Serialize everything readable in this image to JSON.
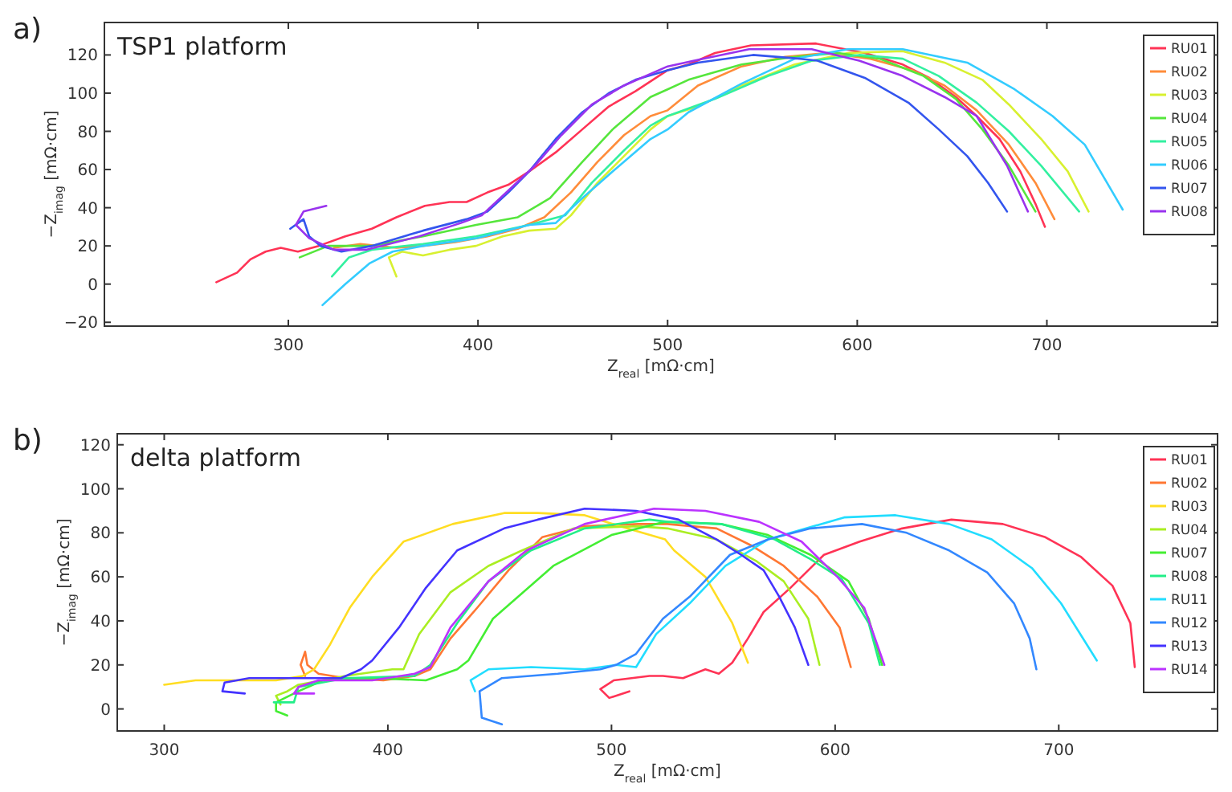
{
  "chart_data": [
    {
      "type": "line",
      "title": "TSP1 platform",
      "xlabel": "Z$_{real}$ [mΩ·cm]",
      "ylabel": "−Z$_{imag}$ [mΩ·cm]",
      "annotations": [
        "a)"
      ],
      "xlim": [
        203,
        790
      ],
      "ylim": [
        -22,
        137
      ],
      "xticks": [
        300,
        400,
        500,
        600,
        700
      ],
      "yticks": [
        -20,
        0,
        20,
        40,
        60,
        80,
        100,
        120
      ],
      "grid": false,
      "legend": "top right",
      "line_style": "solid",
      "marker": "none",
      "series": [
        {
          "name": "RU01",
          "color": "#ff3355",
          "x": [
            262,
            273,
            280,
            288,
            296,
            305,
            316,
            330,
            344,
            357,
            372,
            385,
            394,
            405,
            416,
            427,
            441,
            455,
            469,
            483,
            500,
            511,
            525,
            544,
            578,
            604,
            624,
            638,
            652,
            663,
            675,
            686,
            694,
            699
          ],
          "values": [
            1,
            6,
            13,
            17,
            19,
            17,
            20,
            25,
            29,
            35,
            41,
            43,
            43,
            48,
            52,
            59,
            69,
            81,
            93,
            101,
            112,
            115,
            121,
            125,
            126,
            121,
            115,
            108,
            98,
            88,
            76,
            59,
            42,
            30
          ]
        },
        {
          "name": "RU02",
          "color": "#ff8c3a",
          "x": [
            324,
            338,
            357,
            371,
            388,
            405,
            421,
            435,
            449,
            463,
            477,
            491,
            500,
            516,
            539,
            562,
            584,
            607,
            629,
            646,
            663,
            680,
            694,
            704
          ],
          "values": [
            19,
            21,
            19,
            20,
            22,
            25,
            29,
            35,
            48,
            64,
            78,
            88,
            91,
            104,
            114,
            119,
            121,
            118,
            112,
            104,
            91,
            73,
            53,
            34
          ]
        },
        {
          "name": "RU03",
          "color": "#d8f030",
          "x": [
            357,
            353,
            360,
            371,
            385,
            399,
            413,
            427,
            441,
            449,
            463,
            477,
            491,
            500,
            516,
            539,
            567,
            595,
            624,
            646,
            666,
            680,
            697,
            711,
            722
          ],
          "values": [
            4,
            14,
            17,
            15,
            18,
            20,
            25,
            28,
            29,
            36,
            53,
            67,
            81,
            88,
            93,
            104,
            115,
            121,
            122,
            116,
            107,
            94,
            76,
            59,
            38
          ]
        },
        {
          "name": "RU04",
          "color": "#55e63c",
          "x": [
            306,
            321,
            344,
            371,
            399,
            421,
            438,
            455,
            471,
            491,
            500,
            511,
            539,
            567,
            590,
            612,
            635,
            652,
            666,
            680,
            694
          ],
          "values": [
            14,
            20,
            20,
            25,
            31,
            35,
            45,
            64,
            81,
            98,
            102,
            107,
            115,
            119,
            121,
            118,
            109,
            97,
            81,
            62,
            38
          ]
        },
        {
          "name": "RU05",
          "color": "#33f0a0",
          "x": [
            323,
            332,
            344,
            371,
            399,
            427,
            446,
            460,
            477,
            491,
            500,
            525,
            553,
            576,
            601,
            624,
            643,
            663,
            680,
            697,
            717
          ],
          "values": [
            4,
            14,
            18,
            21,
            25,
            31,
            36,
            53,
            70,
            83,
            88,
            97,
            109,
            117,
            120,
            118,
            109,
            95,
            80,
            62,
            38
          ]
        },
        {
          "name": "RU06",
          "color": "#33ccff",
          "x": [
            318,
            330,
            343,
            355,
            371,
            399,
            427,
            441,
            455,
            471,
            491,
            500,
            511,
            539,
            567,
            595,
            624,
            658,
            683,
            703,
            720,
            740
          ],
          "values": [
            -11,
            0,
            11,
            17,
            20,
            24,
            31,
            32,
            45,
            59,
            76,
            81,
            90,
            105,
            118,
            123,
            123,
            116,
            102,
            88,
            73,
            39
          ]
        },
        {
          "name": "RU07",
          "color": "#3355ee",
          "x": [
            301,
            308,
            311,
            317,
            328,
            344,
            371,
            394,
            405,
            416,
            427,
            441,
            455,
            469,
            483,
            500,
            516,
            545,
            570,
            579,
            604,
            627,
            643,
            658,
            669,
            679
          ],
          "values": [
            29,
            34,
            25,
            20,
            17,
            20,
            28,
            34,
            38,
            48,
            59,
            76,
            90,
            100,
            107,
            112,
            116,
            120,
            118,
            117,
            108,
            95,
            81,
            67,
            53,
            38
          ]
        },
        {
          "name": "RU08",
          "color": "#9933ee",
          "x": [
            320,
            308,
            304,
            311,
            324,
            341,
            369,
            391,
            402,
            416,
            430,
            444,
            460,
            477,
            500,
            514,
            543,
            576,
            601,
            624,
            646,
            663,
            679,
            690
          ],
          "values": [
            41,
            38,
            31,
            24,
            18,
            18,
            25,
            32,
            36,
            49,
            62,
            78,
            94,
            104,
            114,
            117,
            123,
            123,
            117,
            109,
            98,
            88,
            62,
            38
          ]
        }
      ]
    },
    {
      "type": "line",
      "title": "delta platform",
      "xlabel": "Z$_{real}$ [mΩ·cm]",
      "ylabel": "−Z$_{imag}$ [mΩ·cm]",
      "annotations": [
        "b)"
      ],
      "xlim": [
        279,
        771
      ],
      "ylim": [
        -10,
        125
      ],
      "xticks": [
        300,
        400,
        500,
        600,
        700
      ],
      "yticks": [
        0,
        20,
        40,
        60,
        80,
        100,
        120
      ],
      "grid": false,
      "legend": "top right",
      "line_style": "solid",
      "marker": "none",
      "series": [
        {
          "name": "RU01",
          "color": "#ff3355",
          "x": [
            508,
            499,
            495,
            501,
            517,
            523,
            532,
            542,
            548,
            554,
            561,
            568,
            580,
            595,
            611,
            630,
            652,
            675,
            694,
            710,
            724,
            732,
            734
          ],
          "values": [
            8,
            5,
            9,
            13,
            15,
            15,
            14,
            18,
            16,
            21,
            32,
            44,
            55,
            70,
            76,
            82,
            86,
            84,
            78,
            69,
            56,
            39,
            19
          ]
        },
        {
          "name": "RU02",
          "color": "#ff7733",
          "x": [
            363,
            361,
            363,
            364,
            369,
            381,
            398,
            412,
            419,
            428,
            440,
            454,
            469,
            488,
            512,
            525,
            547,
            563,
            577,
            592,
            602,
            607
          ],
          "values": [
            15,
            20,
            26,
            20,
            16,
            14,
            13,
            15,
            18,
            32,
            46,
            63,
            78,
            83,
            84,
            84,
            82,
            74,
            65,
            51,
            37,
            19
          ]
        },
        {
          "name": "RU03",
          "color": "#ffdd22",
          "x": [
            300,
            314,
            336,
            350,
            362,
            367,
            374,
            383,
            393,
            407,
            429,
            452,
            467,
            488,
            507,
            524,
            528,
            542,
            554,
            561
          ],
          "values": [
            11,
            13,
            13,
            13,
            15,
            18,
            29,
            46,
            60,
            76,
            84,
            89,
            89,
            88,
            82,
            77,
            72,
            60,
            39,
            21
          ]
        },
        {
          "name": "RU04",
          "color": "#aaee22",
          "x": [
            352,
            350,
            355,
            360,
            381,
            402,
            407,
            414,
            428,
            445,
            460,
            483,
            512,
            525,
            547,
            565,
            577,
            588,
            593
          ],
          "values": [
            2,
            6,
            8,
            11,
            15,
            18,
            18,
            34,
            53,
            65,
            72,
            82,
            83,
            82,
            77,
            67,
            58,
            41,
            20
          ]
        },
        {
          "name": "RU07",
          "color": "#44ee33",
          "x": [
            355,
            350,
            350,
            360,
            371,
            393,
            417,
            431,
            436,
            447,
            474,
            500,
            524,
            549,
            570,
            589,
            606,
            615,
            621
          ],
          "values": [
            -3,
            -1,
            3,
            8,
            13,
            14,
            13,
            18,
            22,
            41,
            65,
            79,
            85,
            84,
            79,
            70,
            58,
            41,
            20
          ]
        },
        {
          "name": "RU08",
          "color": "#22ee88",
          "x": [
            349,
            358,
            360,
            381,
            412,
            419,
            431,
            445,
            464,
            488,
            517,
            525,
            549,
            573,
            589,
            603,
            615,
            620
          ],
          "values": [
            3,
            3,
            10,
            14,
            15,
            20,
            39,
            58,
            72,
            82,
            86,
            85,
            84,
            77,
            68,
            59,
            39,
            20
          ]
        },
        {
          "name": "RU11",
          "color": "#22ddff",
          "x": [
            439,
            437,
            445,
            464,
            488,
            502,
            511,
            520,
            535,
            551,
            570,
            604,
            627,
            651,
            670,
            688,
            701,
            717
          ],
          "values": [
            8,
            13,
            18,
            19,
            18,
            20,
            19,
            34,
            48,
            65,
            77,
            87,
            88,
            84,
            77,
            64,
            48,
            22
          ]
        },
        {
          "name": "RU12",
          "color": "#3388ff",
          "x": [
            451,
            442,
            441,
            451,
            476,
            495,
            502,
            511,
            523,
            535,
            553,
            570,
            589,
            612,
            632,
            651,
            668,
            680,
            687,
            690
          ],
          "values": [
            -7,
            -4,
            8,
            14,
            16,
            18,
            20,
            25,
            41,
            51,
            70,
            77,
            82,
            84,
            80,
            72,
            62,
            48,
            32,
            18
          ]
        },
        {
          "name": "RU13",
          "color": "#4433ff",
          "x": [
            336,
            326,
            327,
            338,
            357,
            379,
            388,
            393,
            405,
            417,
            431,
            452,
            467,
            488,
            511,
            530,
            547,
            558,
            568,
            575,
            582,
            588
          ],
          "values": [
            7,
            8,
            12,
            14,
            14,
            14,
            18,
            22,
            37,
            55,
            72,
            82,
            86,
            91,
            90,
            86,
            77,
            70,
            63,
            51,
            37,
            20
          ]
        },
        {
          "name": "RU14",
          "color": "#bb33ff",
          "x": [
            367,
            358,
            360,
            369,
            393,
            412,
            419,
            428,
            445,
            462,
            488,
            519,
            542,
            566,
            585,
            601,
            613,
            622
          ],
          "values": [
            7,
            7,
            10,
            13,
            13,
            16,
            19,
            37,
            58,
            72,
            84,
            91,
            90,
            85,
            76,
            60,
            46,
            20
          ]
        }
      ]
    }
  ]
}
